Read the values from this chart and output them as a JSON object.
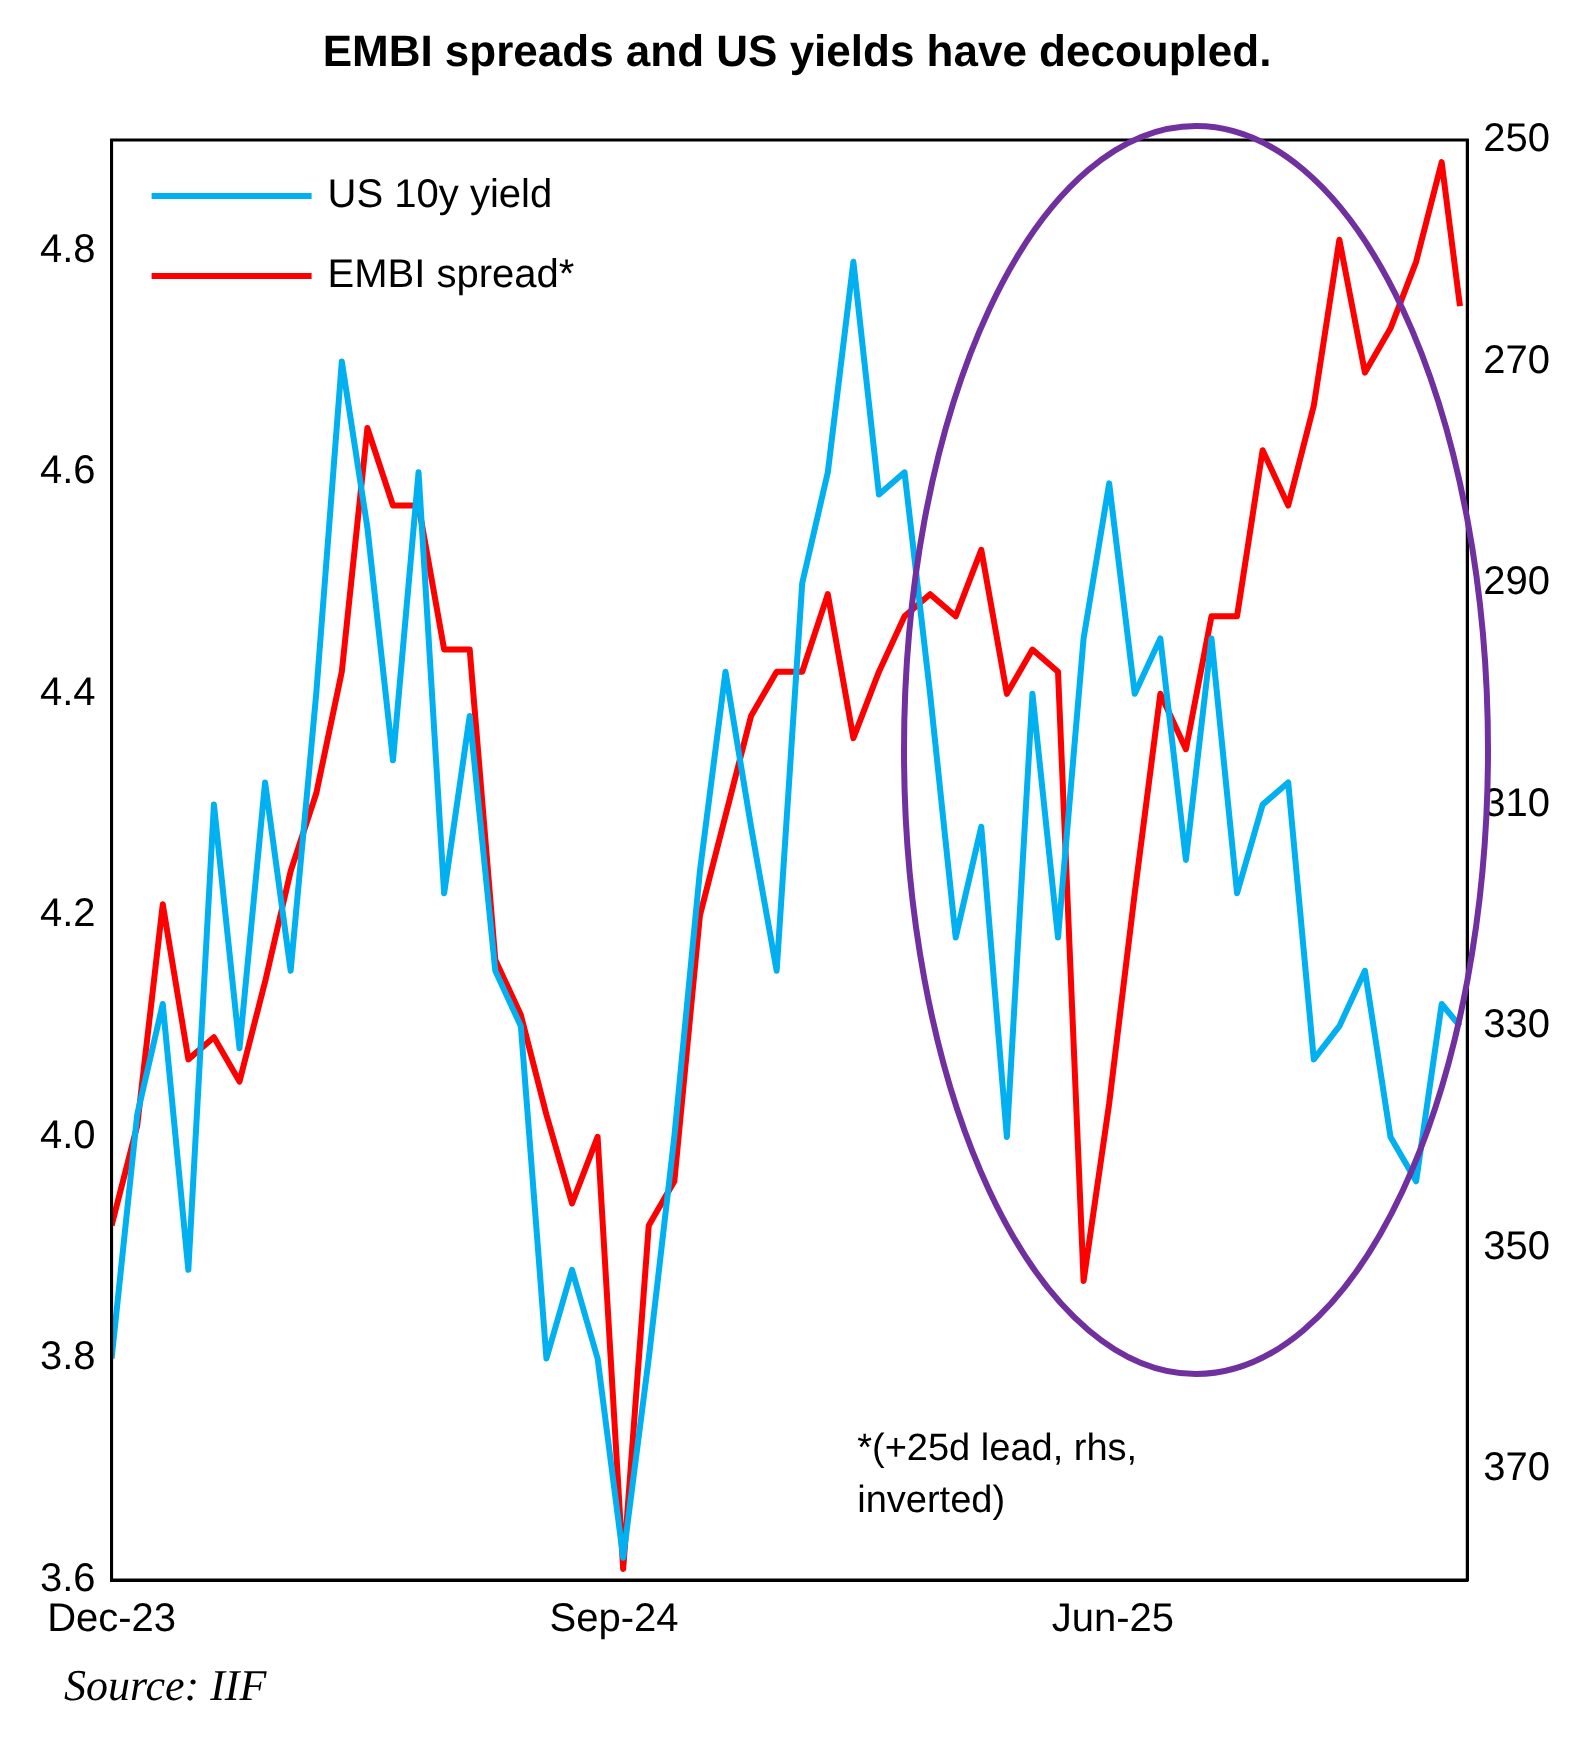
{
  "chart_data": {
    "type": "line",
    "title": "EMBI spreads and US yields have decoupled.",
    "x": [
      "2023-12-01",
      "2023-12-15",
      "2023-12-29",
      "2024-01-12",
      "2024-01-26",
      "2024-02-09",
      "2024-02-23",
      "2024-03-08",
      "2024-03-22",
      "2024-04-05",
      "2024-04-19",
      "2024-05-03",
      "2024-05-17",
      "2024-05-31",
      "2024-06-14",
      "2024-06-28",
      "2024-07-12",
      "2024-07-26",
      "2024-08-09",
      "2024-08-23",
      "2024-09-06",
      "2024-09-20",
      "2024-10-04",
      "2024-10-18",
      "2024-11-01",
      "2024-11-15",
      "2024-11-29",
      "2024-12-13",
      "2024-12-27",
      "2025-01-10",
      "2025-01-24",
      "2025-02-07",
      "2025-02-21",
      "2025-03-07",
      "2025-03-21",
      "2025-04-04",
      "2025-04-18",
      "2025-05-02",
      "2025-05-16",
      "2025-05-30",
      "2025-06-13",
      "2025-06-27",
      "2025-07-11",
      "2025-07-25",
      "2025-08-08",
      "2025-08-22",
      "2025-09-05",
      "2025-09-19",
      "2025-10-03",
      "2025-10-17",
      "2025-10-31",
      "2025-11-14",
      "2025-11-28",
      "2025-12-08"
    ],
    "series": [
      {
        "name": "US 10y yield",
        "color": "#00b0f0",
        "values": [
          3.8,
          4.02,
          4.12,
          3.88,
          4.3,
          4.08,
          4.32,
          4.15,
          4.4,
          4.7,
          4.55,
          4.34,
          4.6,
          4.22,
          4.38,
          4.15,
          4.1,
          3.8,
          3.88,
          3.8,
          3.62,
          3.8,
          4.0,
          4.24,
          4.42,
          4.28,
          4.15,
          4.5,
          4.6,
          4.79,
          4.58,
          4.6,
          4.4,
          4.18,
          4.28,
          4.0,
          4.4,
          4.18,
          4.45,
          4.59,
          4.4,
          4.45,
          4.25,
          4.45,
          4.22,
          4.3,
          4.32,
          4.07,
          4.1,
          4.15,
          4.0,
          3.96,
          4.12,
          4.1
        ]
      },
      {
        "name": "EMBI spread*",
        "color": "#ff0000",
        "axis": "y2",
        "values": [
          348,
          339,
          319,
          333,
          331,
          335,
          326,
          316,
          309,
          298,
          276,
          283,
          283,
          296,
          296,
          324,
          329,
          338,
          346,
          340,
          379,
          348,
          344,
          320,
          311,
          302,
          298,
          298,
          291,
          304,
          298,
          293,
          291,
          293,
          287,
          300,
          296,
          298,
          353,
          337,
          318,
          300,
          305,
          293,
          293,
          278,
          283,
          274,
          259,
          271,
          267,
          261,
          252,
          265
        ]
      }
    ],
    "xlim": [
      "2023-12-01",
      "2025-12-12"
    ],
    "xticks": [
      {
        "value": "2023-12-01",
        "label": "Dec-23"
      },
      {
        "value": "2024-09-01",
        "label": "Sep-24"
      },
      {
        "value": "2025-06-01",
        "label": "Jun-25"
      }
    ],
    "ylim": [
      3.6,
      4.9
    ],
    "yticks": [
      3.6,
      3.8,
      {
        "value": 4,
        "label": "4.0"
      },
      4.2,
      4.4,
      4.6,
      4.8
    ],
    "y2lim": [
      380,
      250
    ],
    "y2ticks": [
      250,
      270,
      290,
      310,
      330,
      350,
      370
    ],
    "annotations": [
      "*(+25d lead, rhs, inverted)",
      "Source: IIF"
    ],
    "legend": "top left",
    "grid": false,
    "marker": "none",
    "line_style": "solid"
  }
}
